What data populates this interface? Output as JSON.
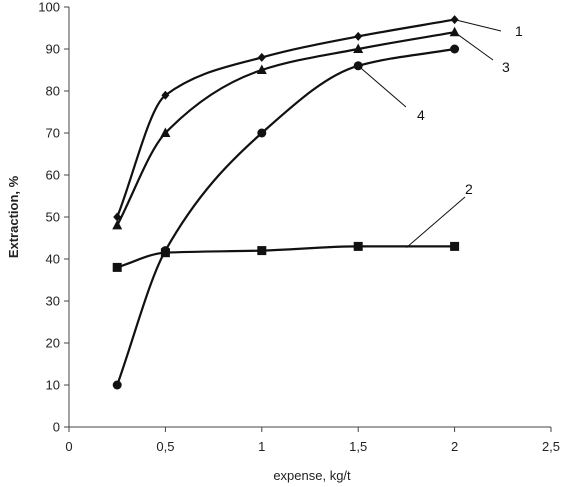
{
  "chart_data": {
    "type": "line",
    "title": "",
    "xlabel": "expense, kg/t",
    "ylabel": "Extraction, %",
    "xlim": [
      0,
      2.5
    ],
    "ylim": [
      0,
      100
    ],
    "xticks": [
      0,
      0.5,
      1,
      1.5,
      2,
      2.5
    ],
    "xtick_labels": [
      "0",
      "0,5",
      "1",
      "1,5",
      "2",
      "2,5"
    ],
    "yticks": [
      0,
      10,
      20,
      30,
      40,
      50,
      60,
      70,
      80,
      90,
      100
    ],
    "ytick_labels": [
      "0",
      "10",
      "20",
      "30",
      "40",
      "50",
      "60",
      "70",
      "80",
      "90",
      "100"
    ],
    "grid": false,
    "legend": "none",
    "series": [
      {
        "tag": "1",
        "marker": "diamond",
        "x": [
          0.25,
          0.5,
          1,
          1.5,
          2
        ],
        "y": [
          50,
          79,
          88,
          93,
          97
        ]
      },
      {
        "tag": "2",
        "marker": "square",
        "x": [
          0.25,
          0.5,
          1,
          1.5,
          2
        ],
        "y": [
          38,
          41.5,
          42,
          43,
          43
        ]
      },
      {
        "tag": "3",
        "marker": "triangle",
        "x": [
          0.25,
          0.5,
          1,
          1.5,
          2
        ],
        "y": [
          48,
          70,
          85,
          90,
          94
        ]
      },
      {
        "tag": "4",
        "marker": "circle",
        "x": [
          0.25,
          0.5,
          1,
          1.5,
          2
        ],
        "y": [
          10,
          42,
          70,
          86,
          90
        ]
      }
    ]
  }
}
